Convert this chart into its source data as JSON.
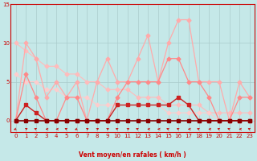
{
  "xlabel": "Vent moyen/en rafales ( km/h )",
  "xlim": [
    -0.5,
    23.5
  ],
  "ylim": [
    -1.5,
    15
  ],
  "yticks": [
    0,
    5,
    10,
    15
  ],
  "xticks": [
    0,
    1,
    2,
    3,
    4,
    5,
    6,
    7,
    8,
    9,
    10,
    11,
    12,
    13,
    14,
    15,
    16,
    17,
    18,
    19,
    20,
    21,
    22,
    23
  ],
  "bg_color": "#c5e8e8",
  "grid_color": "#aacccc",
  "line_rafales_x": [
    0,
    1,
    2,
    3,
    4,
    5,
    6,
    7,
    8,
    9,
    10,
    11,
    12,
    13,
    14,
    15,
    16,
    17,
    18,
    19,
    20,
    21,
    22,
    23
  ],
  "line_rafales_y": [
    0,
    10,
    8,
    3,
    5,
    3,
    5,
    0,
    5,
    8,
    5,
    5,
    8,
    11,
    5,
    10,
    13,
    13,
    5,
    5,
    5,
    0,
    5,
    3
  ],
  "line_rafales_color": "#ffaaaa",
  "line_moy_x": [
    0,
    1,
    2,
    3,
    4,
    5,
    6,
    7,
    8,
    9,
    10,
    11,
    12,
    13,
    14,
    15,
    16,
    17,
    18,
    19,
    20,
    21,
    22,
    23
  ],
  "line_moy_y": [
    0,
    6,
    3,
    0,
    0,
    3,
    3,
    0,
    0,
    0,
    3,
    5,
    5,
    5,
    5,
    8,
    8,
    5,
    5,
    3,
    0,
    0,
    3,
    3
  ],
  "line_moy_color": "#ff8888",
  "line_dark1_x": [
    0,
    1,
    2,
    3,
    4,
    5,
    6,
    7,
    8,
    9,
    10,
    11,
    12,
    13,
    14,
    15,
    16,
    17,
    18,
    19,
    20,
    21,
    22,
    23
  ],
  "line_dark1_y": [
    0,
    2,
    1,
    0,
    0,
    0,
    0,
    0,
    0,
    0,
    2,
    2,
    2,
    2,
    2,
    2,
    3,
    2,
    0,
    0,
    0,
    0,
    0,
    0
  ],
  "line_dark1_color": "#cc2222",
  "line_dark2_x": [
    0,
    1,
    2,
    3,
    4,
    5,
    6,
    7,
    8,
    9,
    10,
    11,
    12,
    13,
    14,
    15,
    16,
    17,
    18,
    19,
    20,
    21,
    22,
    23
  ],
  "line_dark2_y": [
    0,
    0,
    0,
    0,
    0,
    0,
    0,
    0,
    0,
    0,
    0,
    0,
    0,
    0,
    0,
    0,
    0,
    0,
    0,
    0,
    0,
    0,
    0,
    0
  ],
  "line_dark2_color": "#880000",
  "line_extra1_x": [
    0,
    1,
    2,
    3,
    4,
    5,
    6,
    7,
    8,
    9,
    10,
    11,
    12,
    13,
    14,
    15,
    16,
    17,
    18,
    19,
    20,
    21,
    22,
    23
  ],
  "line_extra1_y": [
    10,
    9,
    8,
    7,
    7,
    6,
    6,
    5,
    5,
    4,
    4,
    4,
    3,
    3,
    3,
    2,
    2,
    2,
    2,
    1,
    1,
    1,
    1,
    1
  ],
  "line_extra1_color": "#ffbbbb",
  "line_extra2_x": [
    0,
    1,
    2,
    3,
    4,
    5,
    6,
    7,
    8,
    9,
    10,
    11,
    12,
    13,
    14,
    15,
    16,
    17,
    18,
    19,
    20,
    21,
    22,
    23
  ],
  "line_extra2_y": [
    6,
    5,
    5,
    4,
    4,
    3,
    3,
    3,
    2,
    2,
    2,
    2,
    2,
    2,
    2,
    1,
    1,
    1,
    1,
    1,
    0,
    0,
    0,
    0
  ],
  "line_extra2_color": "#ffcccc",
  "wind_angles": [
    225,
    45,
    315,
    270,
    270,
    315,
    225,
    45,
    45,
    45,
    315,
    45,
    315,
    270,
    270,
    315,
    315,
    270,
    315,
    270,
    315,
    315,
    270,
    315
  ]
}
